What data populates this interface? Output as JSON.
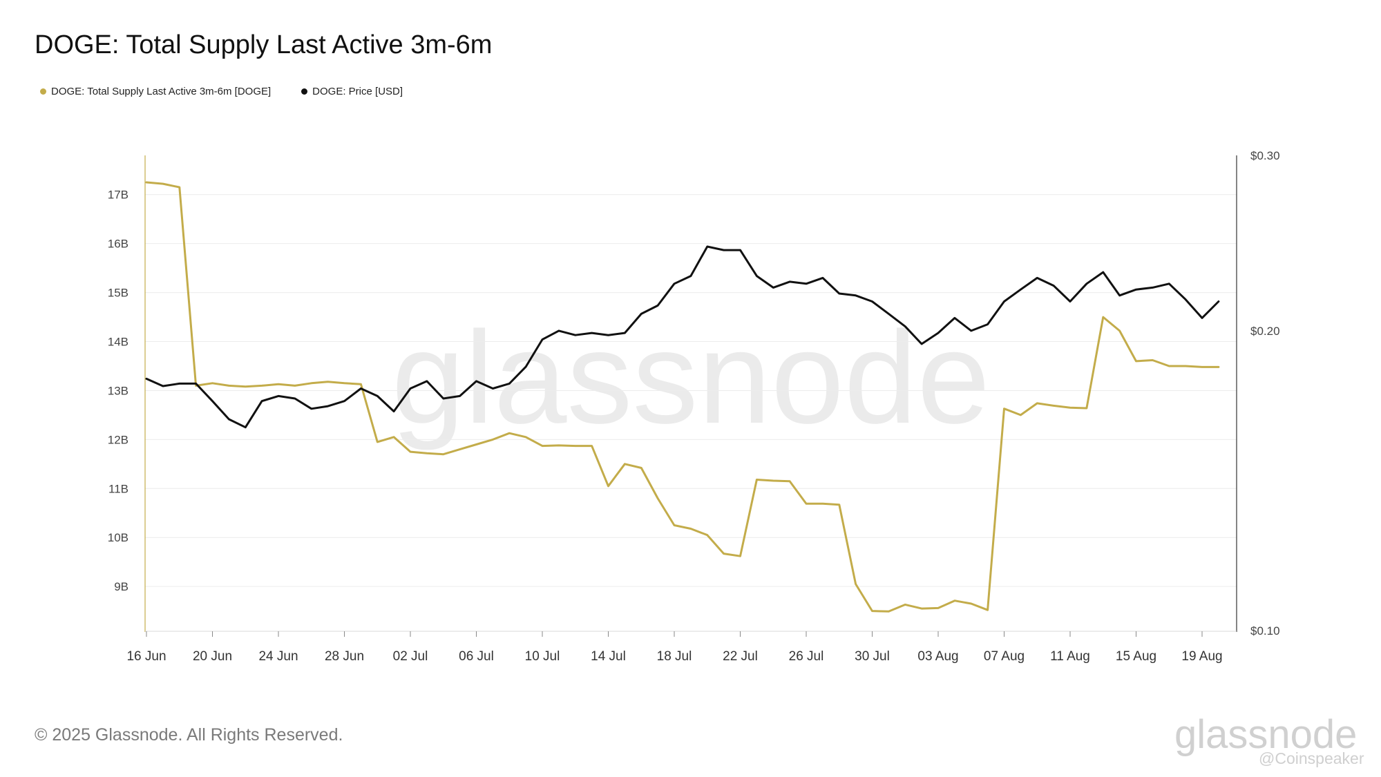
{
  "title": "DOGE: Total Supply Last Active 3m-6m",
  "legend": [
    {
      "label": "DOGE: Total Supply Last Active 3m-6m [DOGE]",
      "color": "#c3ac4a"
    },
    {
      "label": "DOGE: Price [USD]",
      "color": "#111111"
    }
  ],
  "footer": "© 2025 Glassnode. All Rights Reserved.",
  "watermark": "glassnode",
  "logo": "glassnode",
  "credit": "@Coinspeaker",
  "chart_data": {
    "type": "line",
    "x_ticks": [
      "16 Jun",
      "20 Jun",
      "24 Jun",
      "28 Jun",
      "02 Jul",
      "06 Jul",
      "10 Jul",
      "14 Jul",
      "18 Jul",
      "22 Jul",
      "26 Jul",
      "30 Jul",
      "03 Aug",
      "07 Aug",
      "11 Aug",
      "15 Aug",
      "19 Aug"
    ],
    "x_start": "16 Jun",
    "y_left_ticks": [
      "9B",
      "10B",
      "11B",
      "12B",
      "13B",
      "14B",
      "15B",
      "16B",
      "17B"
    ],
    "y_left_tick_values": [
      9,
      10,
      11,
      12,
      13,
      14,
      15,
      16,
      17
    ],
    "y_left_range": [
      8.1,
      17.8
    ],
    "y_right_ticks": [
      "$0.10",
      "$0.20",
      "$0.30"
    ],
    "y_right_tick_values": [
      0.1,
      0.2,
      0.3
    ],
    "y_right_range": [
      0.1,
      0.3
    ],
    "y_right_scale": "log",
    "grid": true,
    "legend_position": "top-left",
    "series": [
      {
        "name": "DOGE: Total Supply Last Active 3m-6m [DOGE]",
        "axis": "left",
        "color": "#c3ac4a",
        "values": [
          17.25,
          17.22,
          17.15,
          13.1,
          13.15,
          13.1,
          13.08,
          13.1,
          13.13,
          13.1,
          13.15,
          13.18,
          13.15,
          13.13,
          11.95,
          12.05,
          11.75,
          11.72,
          11.7,
          11.8,
          11.9,
          12.0,
          12.13,
          12.05,
          11.87,
          11.88,
          11.87,
          11.87,
          11.05,
          11.5,
          11.42,
          10.8,
          10.25,
          10.18,
          10.05,
          9.67,
          9.62,
          11.18,
          11.16,
          11.15,
          10.69,
          10.69,
          10.67,
          9.05,
          8.5,
          8.49,
          8.63,
          8.55,
          8.56,
          8.71,
          8.65,
          8.52,
          12.63,
          12.5,
          12.74,
          12.69,
          12.65,
          12.64,
          14.5,
          14.22,
          13.6,
          13.62,
          13.5,
          13.5,
          13.48,
          13.48
        ]
      },
      {
        "name": "DOGE: Price [USD]",
        "axis": "right",
        "color": "#111111",
        "values": [
          0.179,
          0.176,
          0.177,
          0.177,
          0.17,
          0.163,
          0.16,
          0.17,
          0.172,
          0.171,
          0.167,
          0.168,
          0.17,
          0.175,
          0.172,
          0.166,
          0.175,
          0.178,
          0.171,
          0.172,
          0.178,
          0.175,
          0.177,
          0.184,
          0.196,
          0.2,
          0.198,
          0.199,
          0.198,
          0.199,
          0.208,
          0.212,
          0.223,
          0.227,
          0.243,
          0.241,
          0.241,
          0.227,
          0.221,
          0.224,
          0.223,
          0.226,
          0.218,
          0.217,
          0.214,
          0.208,
          0.202,
          0.194,
          0.199,
          0.206,
          0.2,
          0.203,
          0.214,
          0.22,
          0.226,
          0.222,
          0.214,
          0.223,
          0.229,
          0.217,
          0.22,
          0.221,
          0.223,
          0.215,
          0.206,
          0.214
        ]
      }
    ]
  }
}
